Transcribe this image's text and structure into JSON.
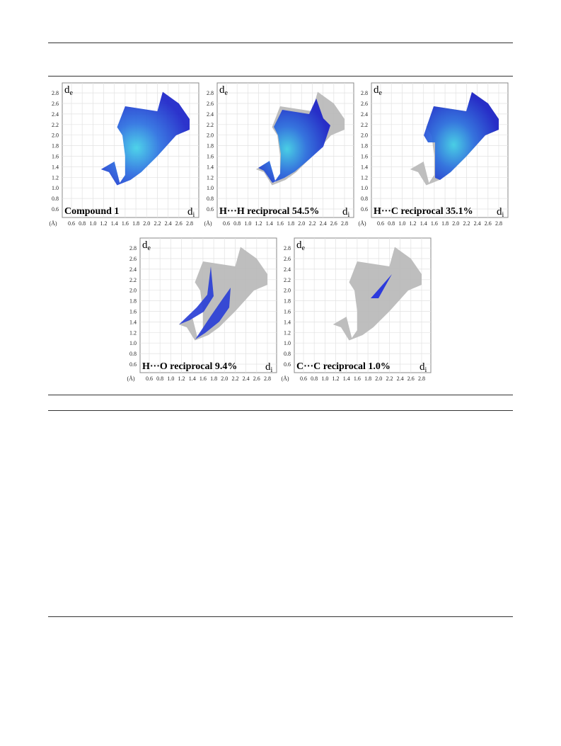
{
  "figure": {
    "ticks": [
      "0.6",
      "0.8",
      "1.0",
      "1.2",
      "1.4",
      "1.6",
      "1.8",
      "2.0",
      "2.2",
      "2.4",
      "2.6",
      "2.8"
    ],
    "unit": "(Å)",
    "y_axis": {
      "main": "d",
      "sub": "e"
    },
    "x_axis": {
      "main": "d",
      "sub": "i"
    },
    "panels": [
      {
        "label": "Compound 1"
      },
      {
        "label": "H···H reciprocal 54.5%"
      },
      {
        "label": "H···C reciprocal 35.1%"
      },
      {
        "label": "H···O reciprocal 9.4%"
      },
      {
        "label": "C···C reciprocal 1.0%"
      }
    ]
  }
}
